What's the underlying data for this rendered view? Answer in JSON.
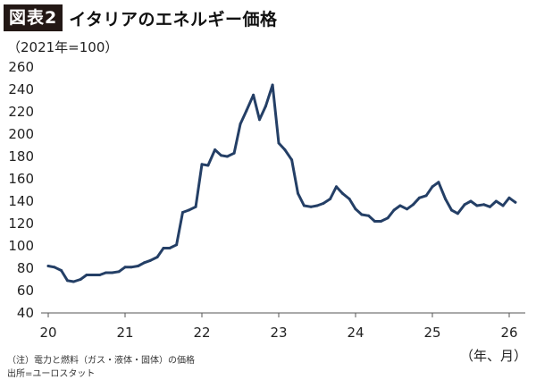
{
  "header": {
    "badge": "図表2",
    "title": "イタリアのエネルギー価格"
  },
  "chart_data": {
    "type": "line",
    "unit_label": "（2021年=100）",
    "x_axis_caption": "（年、月）",
    "xlabel": "",
    "ylabel": "",
    "ylim": [
      40,
      260
    ],
    "yticks": [
      40,
      60,
      80,
      100,
      120,
      140,
      160,
      180,
      200,
      220,
      240,
      260
    ],
    "xlim": [
      2020,
      2026.1
    ],
    "xticks": [
      {
        "value": 2020,
        "label": "20"
      },
      {
        "value": 2021,
        "label": "21"
      },
      {
        "value": 2022,
        "label": "22"
      },
      {
        "value": 2023,
        "label": "23"
      },
      {
        "value": 2024,
        "label": "24"
      },
      {
        "value": 2025,
        "label": "25"
      },
      {
        "value": 2026,
        "label": "26"
      }
    ],
    "grid": false,
    "line_color": "#243f66",
    "series": [
      {
        "x": [
          2020.0,
          2020.08,
          2020.17,
          2020.25,
          2020.33,
          2020.42,
          2020.5,
          2020.58,
          2020.67,
          2020.75,
          2020.83,
          2020.92,
          2021.0,
          2021.08,
          2021.17,
          2021.25,
          2021.33,
          2021.42,
          2021.5,
          2021.58,
          2021.67,
          2021.75,
          2021.83,
          2021.92,
          2022.0,
          2022.08,
          2022.17,
          2022.25,
          2022.33,
          2022.42,
          2022.5,
          2022.58,
          2022.67,
          2022.75,
          2022.83,
          2022.92,
          2023.0,
          2023.08,
          2023.17,
          2023.25,
          2023.33,
          2023.42,
          2023.5,
          2023.58,
          2023.67,
          2023.75,
          2023.83,
          2023.92,
          2024.0,
          2024.08,
          2024.17,
          2024.25,
          2024.33,
          2024.42,
          2024.5,
          2024.58,
          2024.67,
          2024.75,
          2024.83,
          2024.92,
          2025.0,
          2025.08,
          2025.17,
          2025.25,
          2025.33,
          2025.42,
          2025.5,
          2025.58,
          2025.67,
          2025.75,
          2025.83,
          2025.92,
          2026.0,
          2026.08
        ],
        "values": [
          82,
          81,
          78,
          69,
          68,
          70,
          74,
          74,
          74,
          76,
          76,
          77,
          81,
          81,
          82,
          85,
          87,
          90,
          98,
          98,
          101,
          130,
          132,
          135,
          173,
          172,
          186,
          181,
          180,
          183,
          209,
          221,
          235,
          213,
          225,
          244,
          192,
          186,
          177,
          147,
          136,
          135,
          136,
          138,
          142,
          153,
          147,
          142,
          133,
          128,
          127,
          122,
          122,
          125,
          132,
          136,
          133,
          137,
          143,
          145,
          153,
          157,
          142,
          132,
          129,
          137,
          140,
          136,
          137,
          135,
          140,
          136,
          143,
          139
        ]
      }
    ]
  },
  "notes": {
    "line1": "（注）電力と燃料（ガス・液体・固体）の価格",
    "line2": "出所=ユーロスタット"
  }
}
